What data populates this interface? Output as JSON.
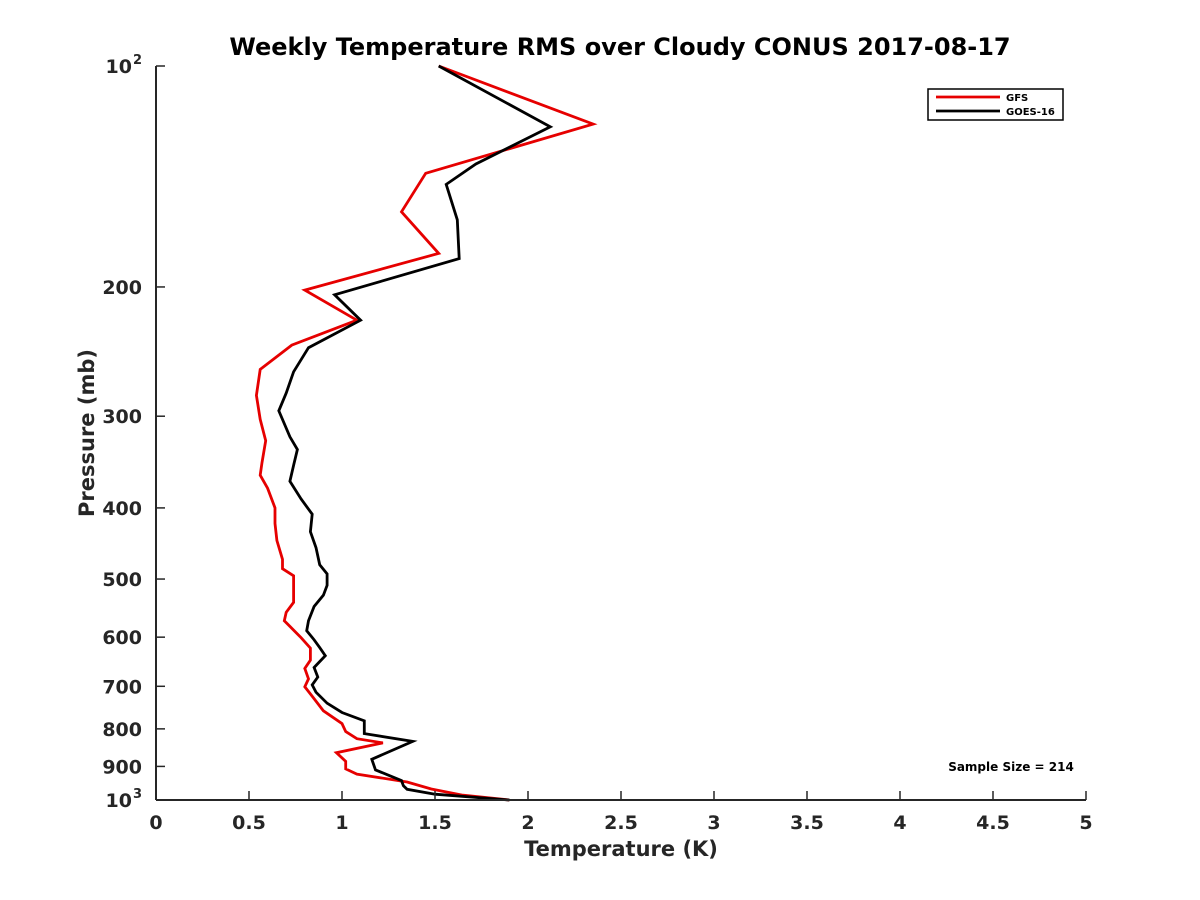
{
  "chart_data": {
    "type": "line",
    "title": "Weekly Temperature RMS over Cloudy CONUS 2017-08-17",
    "xlabel": "Temperature (K)",
    "ylabel": "Pressure (mb)",
    "xlim": [
      0,
      5
    ],
    "ylim": [
      100,
      1000
    ],
    "y_scale": "log",
    "y_reversed": true,
    "x_ticks": [
      "0",
      "0.5",
      "1",
      "1.5",
      "2",
      "2.5",
      "3",
      "3.5",
      "4",
      "4.5",
      "5"
    ],
    "y_ticks": [
      {
        "value": 100,
        "label": "10",
        "exp": "2"
      },
      {
        "value": 200,
        "label": "200",
        "exp": ""
      },
      {
        "value": 300,
        "label": "300",
        "exp": ""
      },
      {
        "value": 400,
        "label": "400",
        "exp": ""
      },
      {
        "value": 500,
        "label": "500",
        "exp": ""
      },
      {
        "value": 600,
        "label": "600",
        "exp": ""
      },
      {
        "value": 700,
        "label": "700",
        "exp": ""
      },
      {
        "value": 800,
        "label": "800",
        "exp": ""
      },
      {
        "value": 900,
        "label": "900",
        "exp": ""
      },
      {
        "value": 1000,
        "label": "10",
        "exp": "3"
      }
    ],
    "legend_position": "top-right",
    "grid": false,
    "annotation": "Sample Size = 214",
    "series": [
      {
        "name": "GFS",
        "color": "#e60000",
        "points": [
          [
            1.52,
            100
          ],
          [
            2.35,
            120
          ],
          [
            1.45,
            140
          ],
          [
            1.32,
            158
          ],
          [
            1.52,
            180
          ],
          [
            0.8,
            202
          ],
          [
            1.08,
            222
          ],
          [
            0.73,
            240
          ],
          [
            0.56,
            259
          ],
          [
            0.54,
            281
          ],
          [
            0.56,
            303
          ],
          [
            0.59,
            324
          ],
          [
            0.57,
            347
          ],
          [
            0.56,
            361
          ],
          [
            0.6,
            376
          ],
          [
            0.64,
            400
          ],
          [
            0.64,
            420
          ],
          [
            0.65,
            443
          ],
          [
            0.68,
            470
          ],
          [
            0.68,
            484
          ],
          [
            0.74,
            495
          ],
          [
            0.74,
            520
          ],
          [
            0.74,
            538
          ],
          [
            0.7,
            555
          ],
          [
            0.69,
            570
          ],
          [
            0.72,
            580
          ],
          [
            0.78,
            601
          ],
          [
            0.83,
            621
          ],
          [
            0.83,
            645
          ],
          [
            0.8,
            662
          ],
          [
            0.82,
            684
          ],
          [
            0.8,
            701
          ],
          [
            0.84,
            722
          ],
          [
            0.9,
            756
          ],
          [
            1.0,
            787
          ],
          [
            1.02,
            807
          ],
          [
            1.08,
            825
          ],
          [
            1.22,
            836
          ],
          [
            0.97,
            862
          ],
          [
            1.02,
            886
          ],
          [
            1.02,
            907
          ],
          [
            1.08,
            922
          ],
          [
            1.35,
            945
          ],
          [
            1.48,
            966
          ],
          [
            1.65,
            985
          ],
          [
            1.9,
            1000
          ]
        ]
      },
      {
        "name": "GOES-16",
        "color": "#000000",
        "points": [
          [
            1.52,
            100
          ],
          [
            2.12,
            121
          ],
          [
            1.72,
            136
          ],
          [
            1.56,
            145
          ],
          [
            1.62,
            162
          ],
          [
            1.63,
            183
          ],
          [
            0.96,
            205
          ],
          [
            1.1,
            222
          ],
          [
            0.82,
            242
          ],
          [
            0.74,
            261
          ],
          [
            0.7,
            279
          ],
          [
            0.66,
            295
          ],
          [
            0.72,
            320
          ],
          [
            0.76,
            333
          ],
          [
            0.74,
            350
          ],
          [
            0.72,
            368
          ],
          [
            0.78,
            389
          ],
          [
            0.84,
            408
          ],
          [
            0.83,
            431
          ],
          [
            0.86,
            453
          ],
          [
            0.88,
            478
          ],
          [
            0.92,
            492
          ],
          [
            0.92,
            510
          ],
          [
            0.9,
            526
          ],
          [
            0.85,
            545
          ],
          [
            0.82,
            570
          ],
          [
            0.81,
            588
          ],
          [
            0.85,
            605
          ],
          [
            0.88,
            620
          ],
          [
            0.91,
            636
          ],
          [
            0.85,
            660
          ],
          [
            0.87,
            680
          ],
          [
            0.84,
            697
          ],
          [
            0.86,
            713
          ],
          [
            0.92,
            738
          ],
          [
            1.0,
            760
          ],
          [
            1.12,
            780
          ],
          [
            1.12,
            812
          ],
          [
            1.38,
            832
          ],
          [
            1.16,
            880
          ],
          [
            1.18,
            910
          ],
          [
            1.32,
            941
          ],
          [
            1.33,
            956
          ],
          [
            1.35,
            967
          ],
          [
            1.5,
            982
          ],
          [
            1.9,
            1000
          ]
        ]
      }
    ]
  }
}
